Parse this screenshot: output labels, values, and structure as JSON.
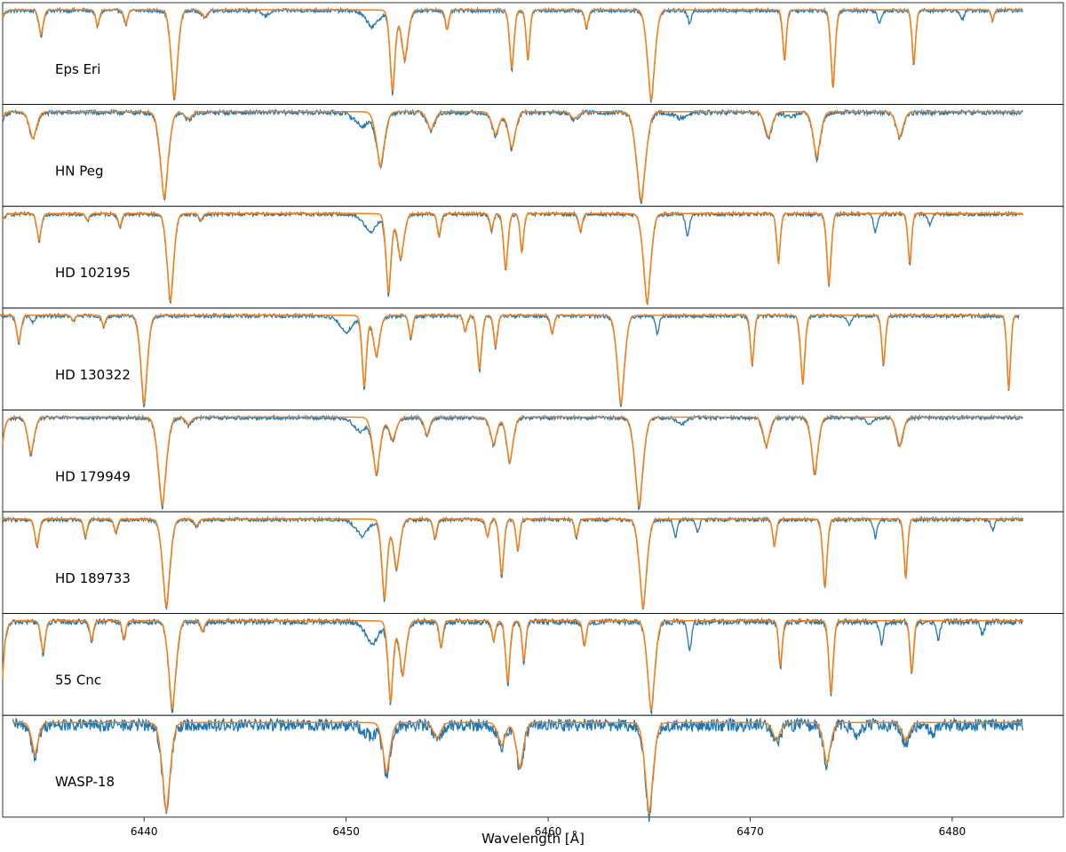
{
  "chart_data": {
    "type": "line",
    "xlabel": "Wavelength [Å]",
    "ylabel": "",
    "xlim": [
      6433.0,
      6485.5
    ],
    "xticks": [
      6440,
      6450,
      6460,
      6470,
      6480
    ],
    "grid": false,
    "legend": "none",
    "colors": {
      "observed": "#1f77b4",
      "model": "#ff7f0e"
    },
    "panels": [
      {
        "label": "Eps Eri",
        "xrange": [
          6433.0,
          6483.5
        ],
        "continuum_drop": 0.08,
        "lines": [
          {
            "w": 6434.9,
            "d": 0.28,
            "s": 0.12
          },
          {
            "w": 6437.7,
            "d": 0.18,
            "s": 0.1
          },
          {
            "w": 6439.1,
            "d": 0.16,
            "s": 0.1
          },
          {
            "w": 6441.5,
            "d": 0.97,
            "s": 0.18
          },
          {
            "w": 6443.0,
            "d": 0.08,
            "s": 0.15
          },
          {
            "w": 6452.3,
            "d": 0.9,
            "s": 0.14
          },
          {
            "w": 6452.9,
            "d": 0.55,
            "s": 0.18
          },
          {
            "w": 6455.0,
            "d": 0.22,
            "s": 0.1
          },
          {
            "w": 6458.2,
            "d": 0.65,
            "s": 0.12
          },
          {
            "w": 6459.0,
            "d": 0.55,
            "s": 0.1
          },
          {
            "w": 6461.9,
            "d": 0.2,
            "s": 0.1
          },
          {
            "w": 6465.1,
            "d": 1.0,
            "s": 0.2
          },
          {
            "w": 6471.7,
            "d": 0.55,
            "s": 0.1
          },
          {
            "w": 6474.1,
            "d": 0.85,
            "s": 0.12
          },
          {
            "w": 6478.1,
            "d": 0.6,
            "s": 0.1
          },
          {
            "w": 6482.0,
            "d": 0.12,
            "s": 0.08
          }
        ],
        "obs_extra": [
          {
            "w": 6451.3,
            "d": 0.18,
            "s": 0.35
          },
          {
            "w": 6446.0,
            "d": 0.06,
            "s": 0.2
          },
          {
            "w": 6467.0,
            "d": 0.15,
            "s": 0.1
          },
          {
            "w": 6476.4,
            "d": 0.15,
            "s": 0.1
          },
          {
            "w": 6480.5,
            "d": 0.1,
            "s": 0.1
          }
        ],
        "noise": 0.02
      },
      {
        "label": "HN Peg",
        "xrange": [
          6433.0,
          6483.5
        ],
        "continuum_drop": 0.08,
        "lines": [
          {
            "w": 6434.5,
            "d": 0.3,
            "s": 0.2
          },
          {
            "w": 6441.0,
            "d": 0.95,
            "s": 0.22
          },
          {
            "w": 6442.2,
            "d": 0.08,
            "s": 0.2
          },
          {
            "w": 6451.7,
            "d": 0.6,
            "s": 0.22
          },
          {
            "w": 6454.2,
            "d": 0.2,
            "s": 0.2
          },
          {
            "w": 6457.4,
            "d": 0.25,
            "s": 0.2
          },
          {
            "w": 6458.2,
            "d": 0.4,
            "s": 0.2
          },
          {
            "w": 6461.3,
            "d": 0.08,
            "s": 0.2
          },
          {
            "w": 6464.6,
            "d": 0.98,
            "s": 0.25
          },
          {
            "w": 6470.9,
            "d": 0.28,
            "s": 0.2
          },
          {
            "w": 6473.3,
            "d": 0.5,
            "s": 0.2
          },
          {
            "w": 6477.4,
            "d": 0.28,
            "s": 0.2
          }
        ],
        "obs_extra": [
          {
            "w": 6450.8,
            "d": 0.15,
            "s": 0.4
          },
          {
            "w": 6466.5,
            "d": 0.06,
            "s": 0.3
          },
          {
            "w": 6472.0,
            "d": 0.05,
            "s": 0.3
          }
        ],
        "noise": 0.025
      },
      {
        "label": "HD 102195",
        "xrange": [
          6433.0,
          6483.5
        ],
        "continuum_drop": 0.08,
        "lines": [
          {
            "w": 6434.8,
            "d": 0.3,
            "s": 0.12
          },
          {
            "w": 6437.2,
            "d": 0.08,
            "s": 0.1
          },
          {
            "w": 6438.8,
            "d": 0.15,
            "s": 0.1
          },
          {
            "w": 6441.3,
            "d": 0.97,
            "s": 0.18
          },
          {
            "w": 6442.8,
            "d": 0.08,
            "s": 0.1
          },
          {
            "w": 6452.1,
            "d": 0.88,
            "s": 0.14
          },
          {
            "w": 6452.7,
            "d": 0.5,
            "s": 0.18
          },
          {
            "w": 6454.6,
            "d": 0.25,
            "s": 0.1
          },
          {
            "w": 6457.2,
            "d": 0.18,
            "s": 0.1
          },
          {
            "w": 6457.9,
            "d": 0.62,
            "s": 0.12
          },
          {
            "w": 6458.7,
            "d": 0.42,
            "s": 0.1
          },
          {
            "w": 6461.6,
            "d": 0.2,
            "s": 0.1
          },
          {
            "w": 6464.9,
            "d": 0.99,
            "s": 0.2
          },
          {
            "w": 6471.4,
            "d": 0.55,
            "s": 0.1
          },
          {
            "w": 6473.9,
            "d": 0.78,
            "s": 0.12
          },
          {
            "w": 6477.9,
            "d": 0.55,
            "s": 0.1
          }
        ],
        "obs_extra": [
          {
            "w": 6451.2,
            "d": 0.2,
            "s": 0.35
          },
          {
            "w": 6466.9,
            "d": 0.25,
            "s": 0.1
          },
          {
            "w": 6476.2,
            "d": 0.2,
            "s": 0.1
          },
          {
            "w": 6478.9,
            "d": 0.12,
            "s": 0.1
          }
        ],
        "noise": 0.02
      },
      {
        "label": "HD 130322",
        "xrange": [
          6432.7,
          6483.3
        ],
        "continuum_drop": 0.0,
        "lines": [
          {
            "w": 6433.8,
            "d": 0.3,
            "s": 0.12
          },
          {
            "w": 6436.5,
            "d": 0.06,
            "s": 0.1
          },
          {
            "w": 6438.0,
            "d": 0.12,
            "s": 0.1
          },
          {
            "w": 6440.0,
            "d": 0.98,
            "s": 0.18
          },
          {
            "w": 6450.9,
            "d": 0.8,
            "s": 0.12
          },
          {
            "w": 6451.5,
            "d": 0.45,
            "s": 0.18
          },
          {
            "w": 6453.2,
            "d": 0.25,
            "s": 0.1
          },
          {
            "w": 6455.9,
            "d": 0.18,
            "s": 0.1
          },
          {
            "w": 6456.6,
            "d": 0.6,
            "s": 0.12
          },
          {
            "w": 6457.4,
            "d": 0.35,
            "s": 0.1
          },
          {
            "w": 6460.2,
            "d": 0.2,
            "s": 0.1
          },
          {
            "w": 6463.6,
            "d": 0.98,
            "s": 0.2
          },
          {
            "w": 6470.1,
            "d": 0.55,
            "s": 0.1
          },
          {
            "w": 6472.6,
            "d": 0.75,
            "s": 0.12
          },
          {
            "w": 6476.6,
            "d": 0.55,
            "s": 0.1
          },
          {
            "w": 6482.8,
            "d": 0.82,
            "s": 0.1
          }
        ],
        "obs_extra": [
          {
            "w": 6450.0,
            "d": 0.18,
            "s": 0.35
          },
          {
            "w": 6434.5,
            "d": 0.08,
            "s": 0.1
          },
          {
            "w": 6465.4,
            "d": 0.2,
            "s": 0.1
          },
          {
            "w": 6474.9,
            "d": 0.1,
            "s": 0.1
          }
        ],
        "noise": 0.02
      },
      {
        "label": "HD 179949",
        "xrange": [
          6433.0,
          6483.5
        ],
        "continuum_drop": 0.3,
        "lines": [
          {
            "w": 6434.4,
            "d": 0.4,
            "s": 0.18
          },
          {
            "w": 6440.9,
            "d": 0.97,
            "s": 0.22
          },
          {
            "w": 6442.2,
            "d": 0.08,
            "s": 0.15
          },
          {
            "w": 6451.5,
            "d": 0.63,
            "s": 0.2
          },
          {
            "w": 6452.3,
            "d": 0.25,
            "s": 0.2
          },
          {
            "w": 6454.0,
            "d": 0.2,
            "s": 0.15
          },
          {
            "w": 6457.3,
            "d": 0.3,
            "s": 0.18
          },
          {
            "w": 6458.1,
            "d": 0.5,
            "s": 0.18
          },
          {
            "w": 6464.5,
            "d": 0.98,
            "s": 0.22
          },
          {
            "w": 6470.8,
            "d": 0.32,
            "s": 0.18
          },
          {
            "w": 6473.2,
            "d": 0.62,
            "s": 0.18
          },
          {
            "w": 6477.4,
            "d": 0.32,
            "s": 0.18
          }
        ],
        "obs_extra": [
          {
            "w": 6450.7,
            "d": 0.15,
            "s": 0.35
          },
          {
            "w": 6466.6,
            "d": 0.08,
            "s": 0.2
          },
          {
            "w": 6475.9,
            "d": 0.06,
            "s": 0.2
          }
        ],
        "noise": 0.02
      },
      {
        "label": "HD 189733",
        "xrange": [
          6433.0,
          6483.5
        ],
        "continuum_drop": 0.0,
        "lines": [
          {
            "w": 6434.7,
            "d": 0.3,
            "s": 0.12
          },
          {
            "w": 6437.1,
            "d": 0.2,
            "s": 0.1
          },
          {
            "w": 6438.6,
            "d": 0.15,
            "s": 0.1
          },
          {
            "w": 6441.1,
            "d": 0.97,
            "s": 0.2
          },
          {
            "w": 6442.6,
            "d": 0.08,
            "s": 0.12
          },
          {
            "w": 6451.9,
            "d": 0.88,
            "s": 0.15
          },
          {
            "w": 6452.5,
            "d": 0.55,
            "s": 0.18
          },
          {
            "w": 6454.4,
            "d": 0.22,
            "s": 0.1
          },
          {
            "w": 6457.0,
            "d": 0.2,
            "s": 0.1
          },
          {
            "w": 6457.7,
            "d": 0.62,
            "s": 0.12
          },
          {
            "w": 6458.5,
            "d": 0.35,
            "s": 0.1
          },
          {
            "w": 6461.4,
            "d": 0.2,
            "s": 0.1
          },
          {
            "w": 6464.7,
            "d": 0.98,
            "s": 0.2
          },
          {
            "w": 6471.2,
            "d": 0.3,
            "s": 0.1
          },
          {
            "w": 6473.7,
            "d": 0.75,
            "s": 0.12
          },
          {
            "w": 6477.7,
            "d": 0.65,
            "s": 0.1
          }
        ],
        "obs_extra": [
          {
            "w": 6450.8,
            "d": 0.18,
            "s": 0.35
          },
          {
            "w": 6466.3,
            "d": 0.2,
            "s": 0.1
          },
          {
            "w": 6467.4,
            "d": 0.15,
            "s": 0.1
          },
          {
            "w": 6476.2,
            "d": 0.2,
            "s": 0.1
          },
          {
            "w": 6482.0,
            "d": 0.12,
            "s": 0.1
          }
        ],
        "noise": 0.02
      },
      {
        "label": "55 Cnc",
        "xrange": [
          6433.0,
          6483.5
        ],
        "continuum_drop": 0.65,
        "lines": [
          {
            "w": 6435.0,
            "d": 0.35,
            "s": 0.12
          },
          {
            "w": 6437.4,
            "d": 0.22,
            "s": 0.1
          },
          {
            "w": 6439.0,
            "d": 0.2,
            "s": 0.1
          },
          {
            "w": 6441.4,
            "d": 0.97,
            "s": 0.2
          },
          {
            "w": 6442.9,
            "d": 0.12,
            "s": 0.1
          },
          {
            "w": 6452.2,
            "d": 0.9,
            "s": 0.14
          },
          {
            "w": 6452.8,
            "d": 0.6,
            "s": 0.18
          },
          {
            "w": 6454.7,
            "d": 0.3,
            "s": 0.1
          },
          {
            "w": 6457.3,
            "d": 0.22,
            "s": 0.1
          },
          {
            "w": 6458.0,
            "d": 0.68,
            "s": 0.12
          },
          {
            "w": 6458.8,
            "d": 0.45,
            "s": 0.1
          },
          {
            "w": 6461.8,
            "d": 0.28,
            "s": 0.1
          },
          {
            "w": 6465.1,
            "d": 0.99,
            "s": 0.2
          },
          {
            "w": 6471.5,
            "d": 0.5,
            "s": 0.1
          },
          {
            "w": 6474.0,
            "d": 0.8,
            "s": 0.12
          },
          {
            "w": 6478.0,
            "d": 0.58,
            "s": 0.1
          }
        ],
        "obs_extra": [
          {
            "w": 6451.3,
            "d": 0.25,
            "s": 0.35
          },
          {
            "w": 6467.0,
            "d": 0.35,
            "s": 0.1
          },
          {
            "w": 6476.5,
            "d": 0.25,
            "s": 0.1
          },
          {
            "w": 6479.3,
            "d": 0.2,
            "s": 0.1
          },
          {
            "w": 6481.5,
            "d": 0.15,
            "s": 0.1
          }
        ],
        "noise": 0.03
      },
      {
        "label": "WASP-18",
        "xrange": [
          6433.5,
          6483.5
        ],
        "continuum_drop": 0.0,
        "lines": [
          {
            "w": 6434.6,
            "d": 0.35,
            "s": 0.18
          },
          {
            "w": 6441.1,
            "d": 0.97,
            "s": 0.22
          },
          {
            "w": 6452.0,
            "d": 0.55,
            "s": 0.2
          },
          {
            "w": 6454.5,
            "d": 0.18,
            "s": 0.2
          },
          {
            "w": 6457.7,
            "d": 0.25,
            "s": 0.2
          },
          {
            "w": 6458.6,
            "d": 0.5,
            "s": 0.2
          },
          {
            "w": 6465.0,
            "d": 1.0,
            "s": 0.22
          },
          {
            "w": 6471.3,
            "d": 0.2,
            "s": 0.2
          },
          {
            "w": 6473.8,
            "d": 0.45,
            "s": 0.2
          },
          {
            "w": 6477.7,
            "d": 0.2,
            "s": 0.2
          }
        ],
        "obs_extra": [
          {
            "w": 6451.2,
            "d": 0.12,
            "s": 0.35
          },
          {
            "w": 6475.3,
            "d": 0.12,
            "s": 0.2
          },
          {
            "w": 6479.0,
            "d": 0.1,
            "s": 0.2
          }
        ],
        "noise": 0.07
      }
    ]
  }
}
